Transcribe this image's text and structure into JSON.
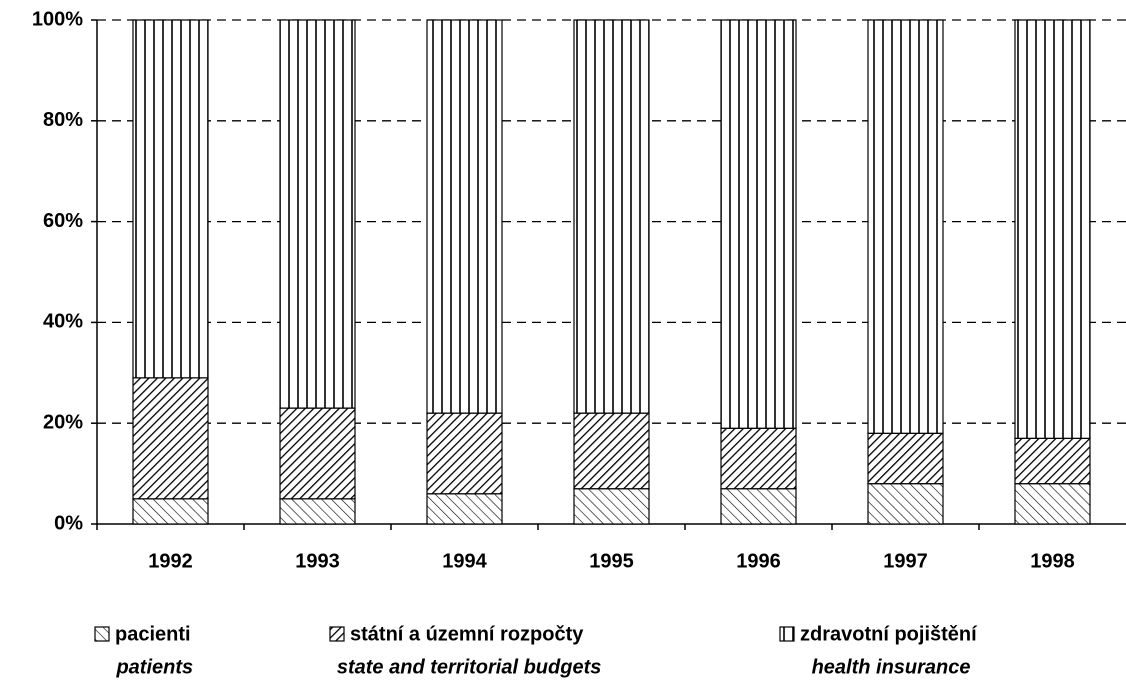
{
  "chart_data": {
    "type": "stacked_bar",
    "categories": [
      "1992",
      "1993",
      "1994",
      "1995",
      "1996",
      "1997",
      "1998"
    ],
    "series": [
      {
        "name": "pacienti",
        "name_en": "patients",
        "color": "#000000",
        "pattern": "back-hatch",
        "values": [
          5,
          5,
          6,
          7,
          7,
          8,
          8
        ]
      },
      {
        "name": "státní a územní rozpočty",
        "name_en": "state and territorial budgets",
        "color": "#000000",
        "pattern": "forward-hatch",
        "values": [
          24,
          18,
          16,
          15,
          12,
          10,
          9
        ]
      },
      {
        "name": "zdravotní pojištění",
        "name_en": "health insurance",
        "color": "#000000",
        "pattern": "vertical",
        "values": [
          71,
          77,
          78,
          78,
          81,
          82,
          83
        ]
      }
    ],
    "ylim": [
      0,
      100
    ],
    "yticks": [
      {
        "value": 0,
        "label": "0%"
      },
      {
        "value": 20,
        "label": "20%"
      },
      {
        "value": 40,
        "label": "40%"
      },
      {
        "value": 60,
        "label": "60%"
      },
      {
        "value": 80,
        "label": "80%"
      },
      {
        "value": 100,
        "label": "100%"
      }
    ],
    "grid": true,
    "legend": "bottom"
  }
}
